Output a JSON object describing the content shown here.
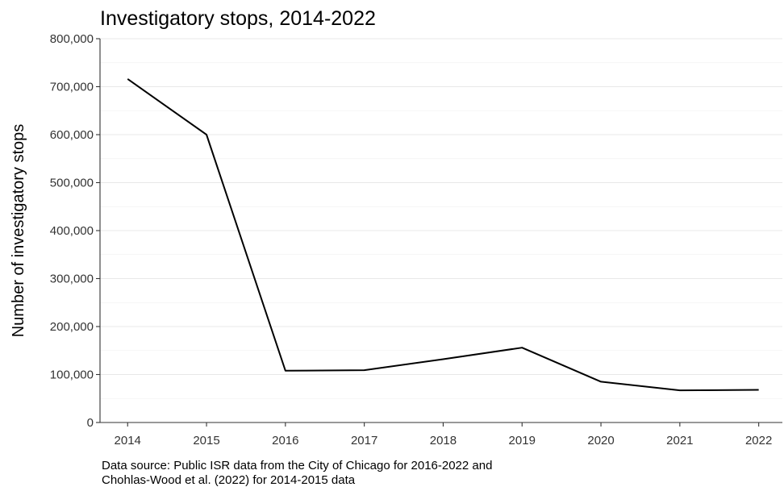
{
  "chart_data": {
    "type": "line",
    "title": "Investigatory stops, 2014-2022",
    "ylabel": "Number of investigatory stops",
    "xlabel": "",
    "x": [
      2014,
      2015,
      2016,
      2017,
      2018,
      2019,
      2020,
      2021,
      2022
    ],
    "x_tick_labels": [
      "2014",
      "2015",
      "2016",
      "2017",
      "2018",
      "2019",
      "2020",
      "2021",
      "2022"
    ],
    "series": [
      {
        "values": [
          716000,
          600000,
          108000,
          109000,
          132000,
          156000,
          85000,
          67000,
          68000
        ]
      }
    ],
    "ylim": [
      0,
      800000
    ],
    "y_ticks": [
      0,
      100000,
      200000,
      300000,
      400000,
      500000,
      600000,
      700000,
      800000
    ],
    "y_tick_labels": [
      "0",
      "100,000",
      "200,000",
      "300,000",
      "400,000",
      "500,000",
      "600,000",
      "700,000",
      "800,000"
    ],
    "grid": true,
    "legend": "none",
    "caption_lines": [
      "Data source: Public ISR data from the City of Chicago for 2016-2022 and",
      "Chohlas-Wood et al. (2022) for 2014-2015 data"
    ],
    "line_color": "#000000"
  }
}
